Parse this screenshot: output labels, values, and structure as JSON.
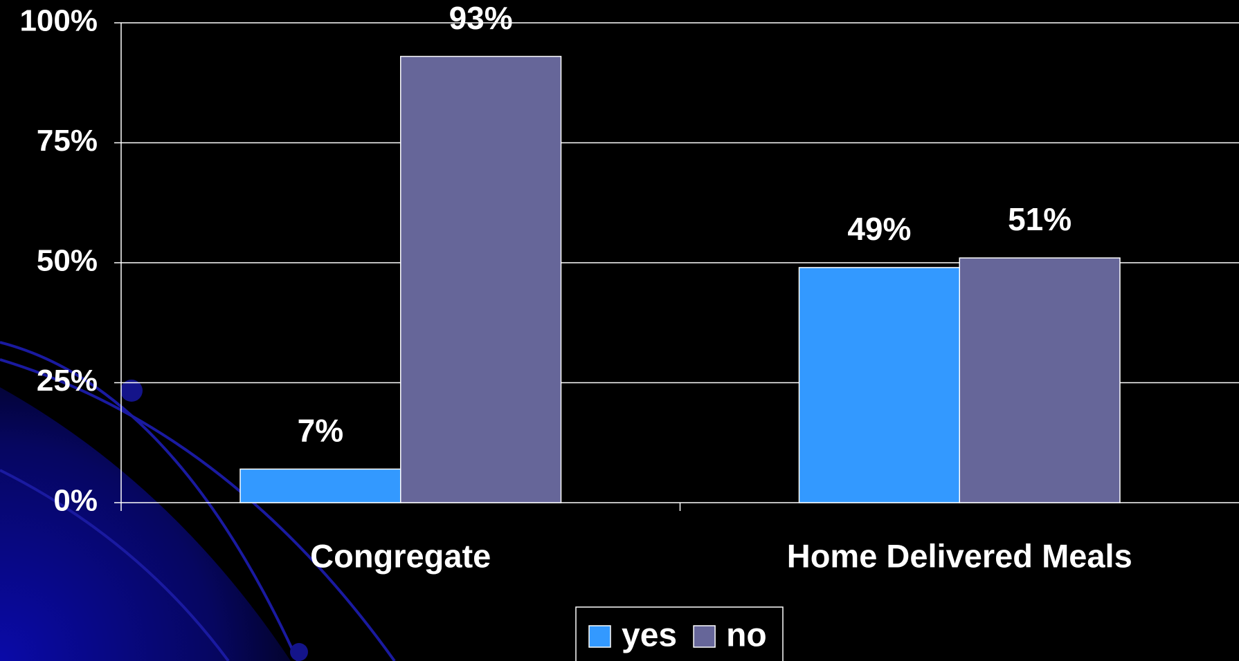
{
  "chart_data": {
    "type": "bar",
    "categories": [
      "Congregate",
      "Home Delivered Meals"
    ],
    "series": [
      {
        "name": "yes",
        "color": "#3399ff",
        "values": [
          7,
          49
        ],
        "value_labels": [
          "7%",
          "49%"
        ]
      },
      {
        "name": "no",
        "color": "#666699",
        "values": [
          93,
          51
        ],
        "value_labels": [
          "93%",
          "51%"
        ]
      }
    ],
    "ylim": [
      0,
      100
    ],
    "yticks": [
      {
        "value": 0,
        "label": "0%"
      },
      {
        "value": 25,
        "label": "25%"
      },
      {
        "value": 50,
        "label": "50%"
      },
      {
        "value": 75,
        "label": "75%"
      },
      {
        "value": 100,
        "label": "100%"
      }
    ],
    "grid": true,
    "legend": "bottom"
  }
}
